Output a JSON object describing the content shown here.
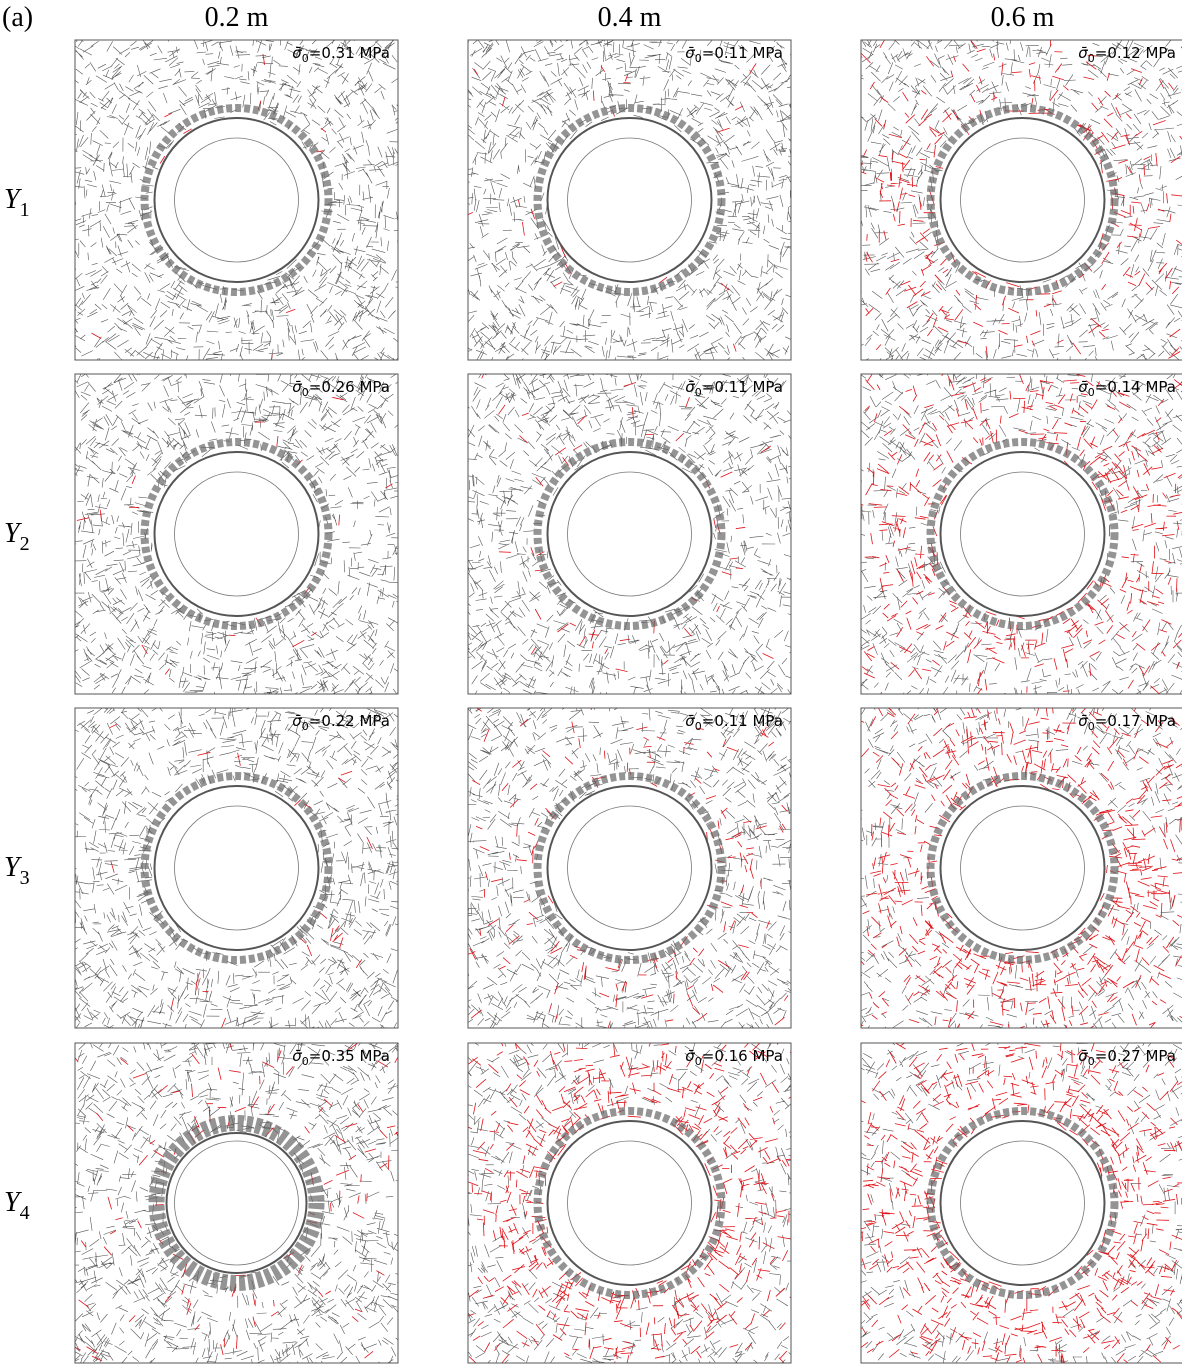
{
  "panel_label": "(a)",
  "columns": [
    "0.2 m",
    "0.4 m",
    "0.6 m"
  ],
  "rows": [
    {
      "symbol": "Y",
      "subscript": "1"
    },
    {
      "symbol": "Y",
      "subscript": "2"
    },
    {
      "symbol": "Y",
      "subscript": "3"
    },
    {
      "symbol": "Y",
      "subscript": "4"
    }
  ],
  "panels": [
    [
      {
        "symbol": "σ̄",
        "subscript": "0",
        "text": "=0.31 MPa"
      },
      {
        "symbol": "σ̄",
        "subscript": "0",
        "text": "=0.11 MPa"
      },
      {
        "symbol": "σ̄",
        "subscript": "0",
        "text": "=0.12 MPa"
      }
    ],
    [
      {
        "symbol": "σ̄",
        "subscript": "0",
        "text": "=0.26 MPa"
      },
      {
        "symbol": "σ̄",
        "subscript": "0",
        "text": "=0.11 MPa"
      },
      {
        "symbol": "σ̄",
        "subscript": "0",
        "text": "=0.14 MPa"
      }
    ],
    [
      {
        "symbol": "σ̄",
        "subscript": "0",
        "text": "=0.22 MPa"
      },
      {
        "symbol": "σ̄",
        "subscript": "0",
        "text": "=0.11 MPa"
      },
      {
        "symbol": "σ̄",
        "subscript": "0",
        "text": "=0.17 MPa"
      }
    ],
    [
      {
        "symbol": "σ̄",
        "subscript": "0",
        "text": "=0.35 MPa"
      },
      {
        "symbol": "σ̄",
        "subscript": "0",
        "text": "=0.16 MPa"
      },
      {
        "symbol": "σ̄",
        "subscript": "0",
        "text": "=0.27 MPa"
      }
    ]
  ]
}
